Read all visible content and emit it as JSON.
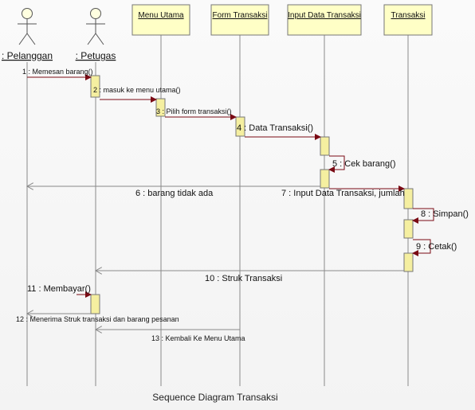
{
  "actors": [
    {
      "label": ": Pelanggan"
    },
    {
      "label": ": Petugas"
    }
  ],
  "objects": [
    {
      "label": "Menu Utama"
    },
    {
      "label": "Form Transaksi"
    },
    {
      "label": "Input Data Transaksi"
    },
    {
      "label": "Transaksi"
    }
  ],
  "messages": [
    {
      "label": "1 : Memesan barang()"
    },
    {
      "label": "2 : masuk ke menu utama()"
    },
    {
      "label": "3 : Pilih form transaksi()"
    },
    {
      "label": "4 : Data Transaksi()"
    },
    {
      "label": "5 : Cek barang()"
    },
    {
      "label": "6 : barang tidak ada"
    },
    {
      "label": "7 : Input Data Transaksi, jumlah"
    },
    {
      "label": "8 : Simpan()"
    },
    {
      "label": "9 : Cetak()"
    },
    {
      "label": "10 : Struk Transaksi"
    },
    {
      "label": "11 : Membayar()"
    },
    {
      "label": "12 : Menerima Struk transaksi dan barang pesanan"
    },
    {
      "label": "13 : Kembali Ke Menu Utama"
    }
  ],
  "caption": "Sequence Diagram Transaksi",
  "colors": {
    "object_fill": "#ffffc6",
    "activation_fill": "#f5efa0",
    "arrow": "#7a0a14",
    "line": "#8a8a8a"
  }
}
